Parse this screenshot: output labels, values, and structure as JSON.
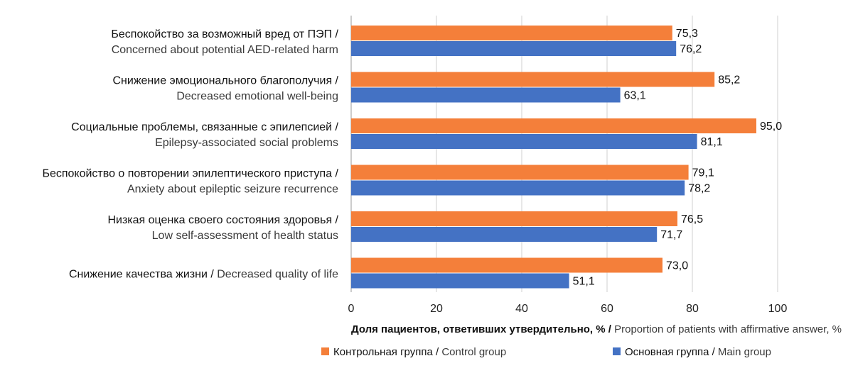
{
  "chart_data": {
    "type": "bar",
    "orientation": "horizontal",
    "categories": [
      {
        "ru": "Беспокойство за возможный вред от ПЭП /",
        "en": "Concerned about potential AED-related harm"
      },
      {
        "ru": "Снижение эмоционального благополучия /",
        "en": "Decreased emotional well-being"
      },
      {
        "ru": "Социальные проблемы, связанные с эпилепсией /",
        "en": "Epilepsy-associated social problems"
      },
      {
        "ru": "Беспокойство о повторении эпилептического приступа /",
        "en": "Anxiety about epileptic seizure recurrence"
      },
      {
        "ru": "Низкая оценка своего состояния здоровья /",
        "en": "Low self-assessment of health status"
      },
      {
        "ru": "Снижение качества жизни /",
        "en": "Decreased quality of life"
      }
    ],
    "series": [
      {
        "name_ru": "Контрольная группа",
        "name_en": "Control group",
        "color": "#f47f3a",
        "values": [
          75.3,
          85.2,
          95.0,
          79.1,
          76.5,
          73.0
        ],
        "labels": [
          "75,3",
          "85,2",
          "95,0",
          "79,1",
          "76,5",
          "73,0"
        ]
      },
      {
        "name_ru": "Основная группа",
        "name_en": "Main group",
        "color": "#4472c4",
        "values": [
          76.2,
          63.1,
          81.1,
          78.2,
          71.7,
          51.1
        ],
        "labels": [
          "76,2",
          "63,1",
          "81,1",
          "78,2",
          "71,7",
          "51,1"
        ]
      }
    ],
    "xlim": [
      0,
      100
    ],
    "xticks": [
      0,
      20,
      40,
      60,
      80,
      100
    ],
    "xlabel_ru": "Доля пациентов, ответивших утвердительно, % /",
    "xlabel_en": "Proportion of patients with affirmative answer, %",
    "grid": true,
    "legend_position": "bottom"
  }
}
